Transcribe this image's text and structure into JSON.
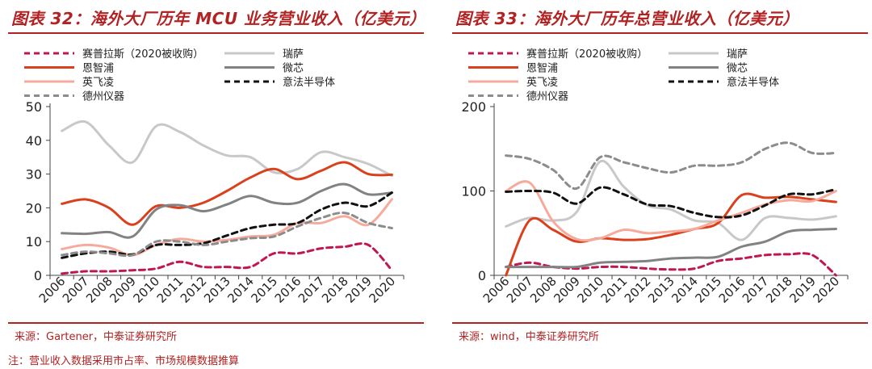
{
  "left": {
    "title": "图表 32：海外大厂历年 MCU 业务营业收入（亿美元）",
    "source": "来源：Gartener，中泰证券研究所"
  },
  "right": {
    "title": "图表 33：海外大厂历年总营业收入（亿美元）",
    "source": "来源：wind，中泰证券研究所"
  },
  "note": "注：营业收入数据采用市占率、市场规模数据推算",
  "colors": {
    "brand": "#b32222",
    "series": {
      "赛普拉斯（2020被收购）": "#c0174f",
      "瑞萨": "#c8c8c8",
      "恩智浦": "#d9401b",
      "微芯": "#828282",
      "英飞凌": "#f6aa9c",
      "意法半导体": "#111111",
      "德州仪器": "#8c8c8c"
    },
    "dashed_series": [
      "赛普拉斯（2020被收购）",
      "意法半导体",
      "德州仪器"
    ]
  },
  "chart_data": [
    {
      "type": "line",
      "title": "图表 32：海外大厂历年 MCU 业务营业收入（亿美元）",
      "xlabel": "",
      "ylabel": "",
      "x": [
        "2006",
        "2007",
        "2008",
        "2009",
        "2010",
        "2011",
        "2012",
        "2013",
        "2014",
        "2015",
        "2016",
        "2017",
        "2018",
        "2019",
        "2020"
      ],
      "ylim": [
        0,
        50
      ],
      "yticks": [
        "0",
        "10",
        "20",
        "30",
        "40",
        "50"
      ],
      "grid": false,
      "legend_position": "top",
      "series": [
        {
          "name": "赛普拉斯（2020被收购）",
          "values": [
            0.5,
            1.2,
            1.2,
            1.5,
            2.0,
            4.0,
            2.5,
            2.5,
            2.5,
            6.5,
            6.5,
            8.0,
            8.5,
            9.0,
            1.5
          ]
        },
        {
          "name": "瑞萨",
          "values": [
            42.8,
            45.5,
            38.5,
            33.5,
            44.2,
            42.5,
            38.5,
            35.5,
            35.0,
            30.5,
            31.5,
            36.5,
            35.0,
            33.0,
            29.5
          ]
        },
        {
          "name": "恩智浦",
          "values": [
            21.2,
            22.5,
            20.0,
            15.0,
            20.5,
            20.0,
            21.5,
            25.0,
            29.0,
            31.5,
            28.5,
            31.0,
            33.5,
            30.0,
            29.8
          ]
        },
        {
          "name": "微芯",
          "values": [
            12.5,
            12.3,
            12.8,
            11.5,
            19.5,
            20.8,
            19.0,
            21.0,
            23.5,
            21.5,
            21.5,
            25.0,
            27.0,
            24.0,
            24.5
          ]
        },
        {
          "name": "英飞凌",
          "values": [
            7.8,
            9.0,
            8.2,
            6.0,
            9.0,
            10.8,
            10.0,
            10.5,
            11.5,
            12.0,
            15.5,
            15.5,
            17.5,
            15.0,
            22.5
          ]
        },
        {
          "name": "意法半导体",
          "values": [
            5.2,
            6.5,
            7.0,
            6.2,
            9.0,
            9.0,
            9.5,
            11.8,
            14.0,
            15.0,
            15.5,
            19.5,
            21.5,
            20.5,
            24.5
          ]
        },
        {
          "name": "德州仪器",
          "values": [
            6.0,
            7.0,
            6.5,
            6.0,
            10.0,
            10.0,
            9.0,
            10.0,
            11.0,
            11.5,
            14.5,
            17.0,
            18.5,
            15.5,
            14.0
          ]
        }
      ]
    },
    {
      "type": "line",
      "title": "图表 33：海外大厂历年总营业收入（亿美元）",
      "xlabel": "",
      "ylabel": "",
      "x": [
        "2006",
        "2007",
        "2008",
        "2009",
        "2010",
        "2011",
        "2012",
        "2013",
        "2014",
        "2015",
        "2016",
        "2017",
        "2018",
        "2019",
        "2020"
      ],
      "ylim": [
        0,
        200
      ],
      "yticks": [
        "0",
        "100",
        "200"
      ],
      "grid": false,
      "legend_position": "top",
      "series": [
        {
          "name": "赛普拉斯（2020被收购）",
          "values": [
            10,
            15,
            10,
            8,
            10,
            10,
            8,
            7,
            8,
            17,
            20,
            24,
            25,
            24,
            0
          ]
        },
        {
          "name": "瑞萨",
          "values": [
            58,
            68,
            65,
            75,
            135,
            105,
            83,
            78,
            65,
            62,
            42,
            68,
            68,
            66,
            70
          ]
        },
        {
          "name": "恩智浦",
          "values": [
            0,
            65,
            54,
            40,
            44,
            42,
            43,
            48,
            55,
            62,
            95,
            92,
            93,
            90,
            87
          ]
        },
        {
          "name": "微芯",
          "values": [
            10,
            10,
            10,
            10,
            15,
            16,
            17,
            20,
            21,
            22,
            34,
            40,
            52,
            54,
            55
          ]
        },
        {
          "name": "英飞凌",
          "values": [
            100,
            110,
            64,
            43,
            44,
            54,
            50,
            52,
            55,
            65,
            74,
            84,
            89,
            88,
            100
          ]
        },
        {
          "name": "意法半导体",
          "values": [
            99,
            100,
            98,
            85,
            104,
            96,
            84,
            82,
            74,
            69,
            71,
            83,
            96,
            96,
            102
          ]
        },
        {
          "name": "德州仪器",
          "values": [
            142,
            138,
            125,
            103,
            140,
            134,
            127,
            122,
            130,
            130,
            134,
            150,
            157,
            145,
            145
          ]
        }
      ]
    }
  ]
}
